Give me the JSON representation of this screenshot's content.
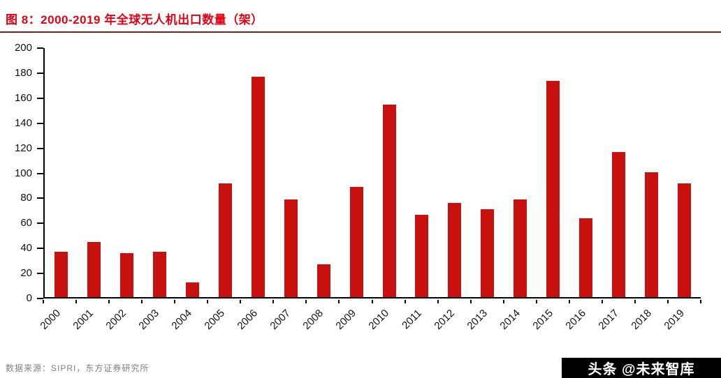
{
  "header": {
    "title": "图 8：2000-2019 年全球无人机出口数量（架）"
  },
  "footer": {
    "source": "数据来源：SIPRI，东方证券研究所",
    "watermark": "头条 @未来智库"
  },
  "chart_data": {
    "type": "bar",
    "title": "图 8：2000-2019 年全球无人机出口数量（架）",
    "categories": [
      "2000",
      "2001",
      "2002",
      "2003",
      "2004",
      "2005",
      "2006",
      "2007",
      "2008",
      "2009",
      "2010",
      "2011",
      "2012",
      "2013",
      "2014",
      "2015",
      "2016",
      "2017",
      "2018",
      "2019"
    ],
    "values": [
      36,
      44,
      35,
      36,
      12,
      91,
      176,
      78,
      26,
      88,
      154,
      66,
      75,
      70,
      78,
      173,
      63,
      116,
      100,
      91
    ],
    "xlabel": "",
    "ylabel": "",
    "ylim": [
      0,
      200
    ],
    "ytick_step": 20,
    "grid": false,
    "legend": false,
    "colors": {
      "bar": "#C8100E",
      "title": "#E60012",
      "divider": "#8C1A11",
      "axis": "#000000",
      "source_text": "#808080",
      "watermark_bg": "#000000",
      "watermark_text": "#FFFFFF"
    }
  }
}
